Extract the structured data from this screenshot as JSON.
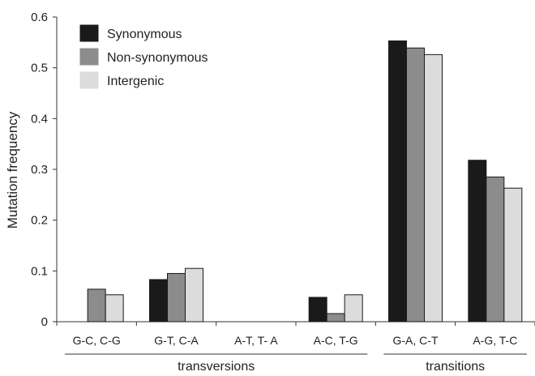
{
  "chart_data": {
    "type": "bar",
    "title": "",
    "xlabel": "",
    "ylabel": "Mutation frequency",
    "ylim": [
      0,
      0.6
    ],
    "yticks": [
      0,
      0.1,
      0.2,
      0.3,
      0.4,
      0.5,
      0.6
    ],
    "ytick_labels": [
      "0",
      "0.1",
      "0.2",
      "0.3",
      "0.4",
      "0.5",
      "0.6"
    ],
    "grid": false,
    "legend_position": "top-left",
    "categories": [
      "G-C, C-G",
      "G-T, C-A",
      "A-T, T- A",
      "A-C, T-G",
      "G-A, C-T",
      "A-G, T-C"
    ],
    "series": [
      {
        "name": "Synonymous",
        "color": "#1a1a1a",
        "values": [
          0,
          0.083,
          0,
          0.048,
          0.553,
          0.318
        ]
      },
      {
        "name": "Non-synonymous",
        "color": "#8c8c8c",
        "values": [
          0.064,
          0.095,
          0,
          0.016,
          0.539,
          0.285
        ]
      },
      {
        "name": "Intergenic",
        "color": "#dcdcdc",
        "values": [
          0.053,
          0.105,
          0,
          0.053,
          0.526,
          0.263
        ]
      }
    ],
    "groups": [
      {
        "label": "transversions",
        "categories": [
          "G-C, C-G",
          "G-T, C-A",
          "A-T, T- A",
          "A-C, T-G"
        ]
      },
      {
        "label": "transitions",
        "categories": [
          "G-A, C-T",
          "A-G, T-C"
        ]
      }
    ]
  }
}
